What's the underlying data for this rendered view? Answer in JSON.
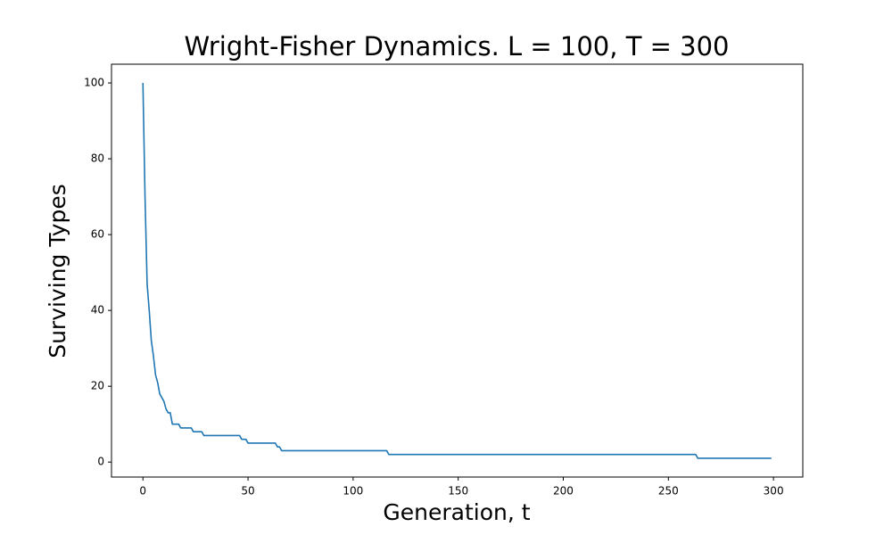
{
  "chart_data": {
    "type": "line",
    "title": "Wright-Fisher Dynamics. L = 100, T = 300",
    "x_label": "Generation, t",
    "y_label": "Surviving Types",
    "x": [
      0,
      1,
      2,
      3,
      4,
      5,
      6,
      7,
      8,
      9,
      10,
      11,
      12,
      13,
      14,
      17,
      18,
      23,
      24,
      28,
      29,
      46,
      47,
      49,
      50,
      63,
      64,
      65,
      66,
      116,
      117,
      263,
      264,
      299
    ],
    "values": [
      100,
      70,
      47,
      40,
      32,
      28,
      23,
      21,
      18,
      17,
      16,
      14,
      13,
      13,
      10,
      10,
      9,
      9,
      8,
      8,
      7,
      7,
      6,
      6,
      5,
      5,
      4,
      4,
      3,
      3,
      2,
      2,
      1,
      1
    ],
    "color": "#1f77b4",
    "xlim": [
      -14.95,
      313.95
    ],
    "xticks": [
      0,
      50,
      100,
      150,
      200,
      250,
      300
    ],
    "ylim": [
      -3.95,
      104.95
    ],
    "yticks": [
      0,
      20,
      40,
      60,
      80,
      100
    ],
    "grid": false
  }
}
